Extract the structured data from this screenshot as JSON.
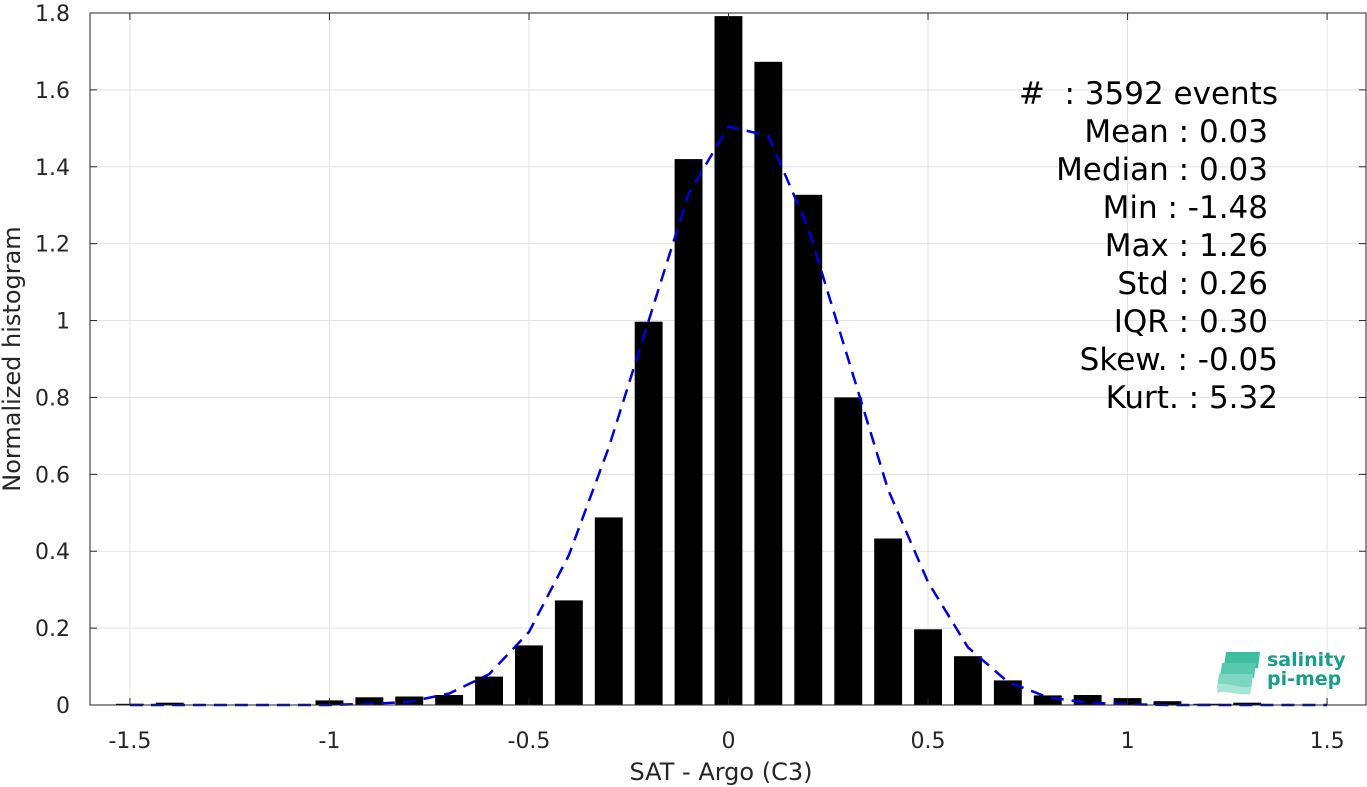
{
  "chart_data": {
    "type": "bar",
    "title": "",
    "xlabel": "SAT - Argo (C3)",
    "ylabel": "Normalized histogram",
    "xlim": [
      -1.6,
      1.6
    ],
    "ylim": [
      0,
      1.8
    ],
    "xticks": [
      -1.5,
      -1,
      -0.5,
      0,
      0.5,
      1,
      1.5
    ],
    "xtick_labels": [
      "-1.5",
      "-1",
      "-0.5",
      "0",
      "0.5",
      "1",
      "1.5"
    ],
    "yticks": [
      0,
      0.2,
      0.4,
      0.6,
      0.8,
      1,
      1.2,
      1.4,
      1.6,
      1.8
    ],
    "ytick_labels": [
      "0",
      "0.2",
      "0.4",
      "0.6",
      "0.8",
      "1",
      "1.2",
      "1.4",
      "1.6",
      "1.8"
    ],
    "grid": true,
    "bar_width": 0.07,
    "bar_color": "#000000",
    "bars": {
      "x": [
        -1.5,
        -1.4,
        -1.3,
        -1.2,
        -1.1,
        -1.0,
        -0.9,
        -0.8,
        -0.7,
        -0.6,
        -0.5,
        -0.4,
        -0.3,
        -0.2,
        -0.1,
        0.0,
        0.1,
        0.2,
        0.3,
        0.4,
        0.5,
        0.6,
        0.7,
        0.8,
        0.9,
        1.0,
        1.1,
        1.2,
        1.3,
        1.4
      ],
      "values": [
        0.003,
        0.006,
        0.0,
        0.0,
        0.0,
        0.012,
        0.02,
        0.022,
        0.026,
        0.074,
        0.155,
        0.272,
        0.488,
        0.997,
        1.42,
        1.792,
        1.673,
        1.327,
        0.8,
        0.433,
        0.197,
        0.127,
        0.064,
        0.025,
        0.026,
        0.018,
        0.01,
        0.003,
        0.006,
        0.0
      ]
    },
    "fit_curve": {
      "style": "dashed",
      "color": "#0000dd",
      "x": [
        -1.5,
        -1.4,
        -1.3,
        -1.2,
        -1.1,
        -1.0,
        -0.9,
        -0.8,
        -0.7,
        -0.6,
        -0.5,
        -0.4,
        -0.3,
        -0.2,
        -0.1,
        0.0,
        0.1,
        0.2,
        0.3,
        0.4,
        0.5,
        0.6,
        0.7,
        0.8,
        0.9,
        1.0,
        1.1,
        1.2,
        1.3,
        1.4,
        1.5
      ],
      "y": [
        0.0,
        0.0,
        0.0,
        0.0,
        0.0,
        0.0,
        0.003,
        0.008,
        0.03,
        0.08,
        0.19,
        0.39,
        0.67,
        1.0,
        1.33,
        1.505,
        1.48,
        1.24,
        0.9,
        0.56,
        0.32,
        0.15,
        0.06,
        0.02,
        0.006,
        0.002,
        0.0,
        0.0,
        0.0,
        0.0,
        0.0
      ]
    },
    "annotations": [
      {
        "label": "#  : 3592 events"
      },
      {
        "label": "Mean : 0.03"
      },
      {
        "label": "Median : 0.03"
      },
      {
        "label": "Min : -1.48"
      },
      {
        "label": "Max : 1.26"
      },
      {
        "label": "Std : 0.26"
      },
      {
        "label": "IQR : 0.30"
      },
      {
        "label": "Skew. : -0.05"
      },
      {
        "label": "Kurt. : 5.32"
      }
    ]
  },
  "logo": {
    "line1": "salinity",
    "line2": "pi-mep",
    "color": "#1a9e8c"
  }
}
